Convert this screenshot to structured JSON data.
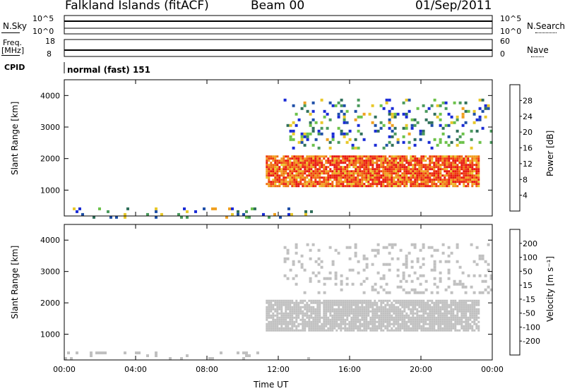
{
  "header": {
    "station": "Falkland Islands (fitACF)",
    "beam": "Beam 00",
    "date": "01/Sep/2011"
  },
  "strips": {
    "nsky": {
      "label": "N.Sky",
      "ticks_left": [
        "10^5",
        "10^0"
      ],
      "right_label": "N.Search",
      "ticks_right": [
        "10^5",
        "10^0"
      ]
    },
    "freq": {
      "label_top": "Freq.",
      "label_bottom": "[MHz]",
      "ticks_left": [
        "18",
        "8"
      ],
      "right_label": "Nave",
      "ticks_right": [
        "60",
        "0"
      ]
    },
    "cpid": {
      "label": "CPID",
      "value": "normal (fast) 151"
    }
  },
  "colors": {
    "power": [
      "#1a2bd6",
      "#1f4fa8",
      "#2f6f5a",
      "#4a9a5c",
      "#6cc24a",
      "#e8c82a",
      "#f0a020",
      "#f06d10",
      "#ee3a10",
      "#e81810"
    ],
    "velocity": [
      "#e81810",
      "#f04010",
      "#f07010",
      "#f0a020",
      "#c0c0c0",
      "#c0c0c0",
      "#55c040",
      "#2f8f5a",
      "#1f4fa8",
      "#1a2bd6"
    ]
  },
  "chart_data": [
    {
      "type": "heatmap",
      "title": "Power",
      "xlabel": "",
      "ylabel": "Slant Range [km]",
      "x_ticks": [
        "00:00",
        "04:00",
        "08:00",
        "12:00",
        "16:00",
        "20:00",
        "00:00"
      ],
      "y_ticks": [
        "1000",
        "2000",
        "3000",
        "4000"
      ],
      "xlim_hours": [
        0,
        24
      ],
      "ylim_km": [
        180,
        4500
      ],
      "colorbar": {
        "label": "Power [dB]",
        "ticks": [
          "4",
          "8",
          "12",
          "16",
          "20",
          "24",
          "28"
        ],
        "range": [
          0,
          30
        ]
      },
      "regions": [
        {
          "name": "main echo band",
          "t_start": 11.3,
          "t_end": 23.3,
          "r_low": 1100,
          "r_high": 2100,
          "value": 24
        },
        {
          "name": "upper scatter",
          "t_start": 12.3,
          "t_end": 23.9,
          "r_low": 2300,
          "r_high": 3900,
          "value": 9
        },
        {
          "name": "near range scatter",
          "t_start": 0,
          "t_end": 14,
          "r_low": 180,
          "r_high": 450,
          "value": 10
        }
      ]
    },
    {
      "type": "heatmap",
      "title": "Velocity",
      "xlabel": "Time UT",
      "ylabel": "Slant Range [km]",
      "x_ticks": [
        "00:00",
        "04:00",
        "08:00",
        "12:00",
        "16:00",
        "20:00",
        "00:00"
      ],
      "y_ticks": [
        "1000",
        "2000",
        "3000",
        "4000"
      ],
      "xlim_hours": [
        0,
        24
      ],
      "ylim_km": [
        180,
        4500
      ],
      "colorbar": {
        "label": "Velocity [m s⁻¹]",
        "ticks": [
          "-200",
          "-100",
          "-50",
          "-15",
          "15",
          "50",
          "100",
          "200"
        ],
        "range": [
          -250,
          250
        ]
      },
      "regions": [
        {
          "name": "ground scatter band",
          "t_start": 11.3,
          "t_end": 23.3,
          "r_low": 1100,
          "r_high": 2100,
          "value": 0
        },
        {
          "name": "upper scatter",
          "t_start": 12.3,
          "t_end": 23.9,
          "r_low": 2300,
          "r_high": 3900,
          "value": -20
        },
        {
          "name": "near range scatter",
          "t_start": 0,
          "t_end": 14,
          "r_low": 180,
          "r_high": 450,
          "value": -40
        }
      ]
    }
  ]
}
